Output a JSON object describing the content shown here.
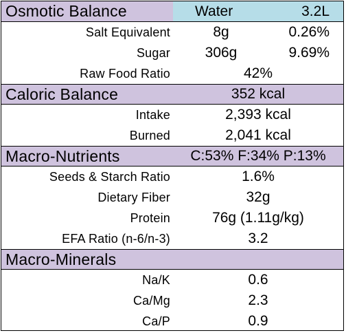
{
  "sections": {
    "osmotic": {
      "title": "Osmotic Balance",
      "water_label": "Water",
      "water_value": "3.2L",
      "rows": [
        {
          "label": "Salt Equivalent",
          "value1": "8g",
          "value2": "0.26%"
        },
        {
          "label": "Sugar",
          "value1": "306g",
          "value2": "9.69%"
        },
        {
          "label": "Raw Food Ratio",
          "value": "42%"
        }
      ]
    },
    "caloric": {
      "title": "Caloric Balance",
      "value": "352 kcal",
      "rows": [
        {
          "label": "Intake",
          "value": "2,393 kcal"
        },
        {
          "label": "Burned",
          "value": "2,041 kcal"
        }
      ]
    },
    "macro_nutrients": {
      "title": "Macro-Nutrients",
      "value": "C:53% F:34% P:13%",
      "rows": [
        {
          "label": "Seeds & Starch Ratio",
          "value": "1.6%"
        },
        {
          "label": "Dietary Fiber",
          "value": "32g"
        },
        {
          "label": "Protein",
          "value": "76g (1.11g/kg)"
        },
        {
          "label": "EFA Ratio (n-6/n-3)",
          "value": "3.2"
        }
      ]
    },
    "macro_minerals": {
      "title": "Macro-Minerals",
      "rows": [
        {
          "label": "Na/K",
          "value": "0.6"
        },
        {
          "label": "Ca/Mg",
          "value": "2.3"
        },
        {
          "label": "Ca/P",
          "value": "0.9"
        }
      ]
    }
  },
  "colors": {
    "header_bg": "#cfc3de",
    "water_bg": "#b6dde8",
    "border": "#000000"
  }
}
